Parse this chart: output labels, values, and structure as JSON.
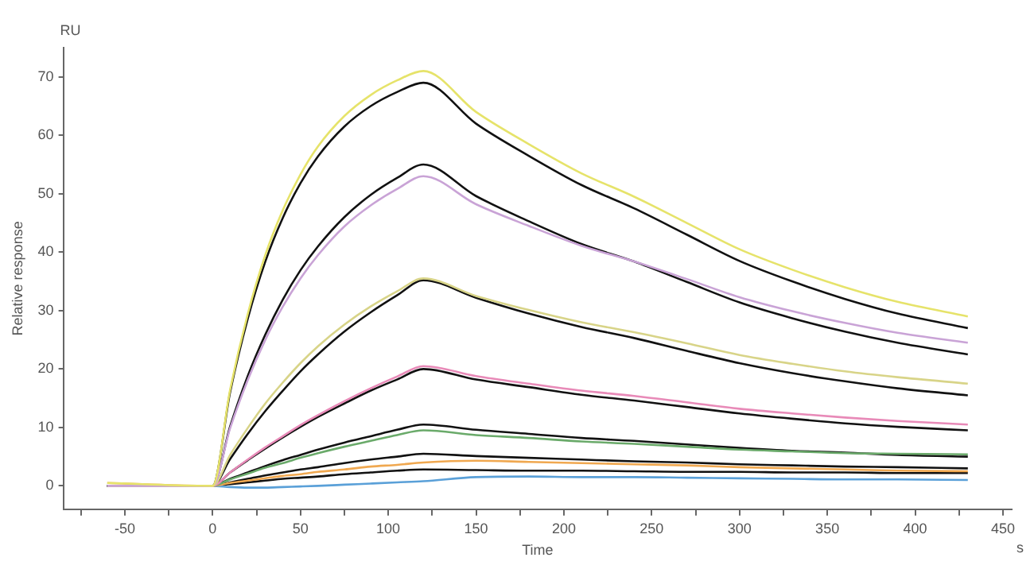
{
  "chart_data": {
    "type": "line",
    "xlabel": "Time",
    "ylabel": "Relative response",
    "annotations": [
      "RU",
      "s"
    ],
    "x": [
      -60,
      0,
      10,
      20,
      30,
      40,
      50,
      60,
      75,
      90,
      105,
      120,
      150,
      180,
      210,
      240,
      270,
      300,
      330,
      360,
      390,
      430
    ],
    "series": [
      {
        "color": "#e6e36a",
        "values": [
          0.5,
          0,
          16.5,
          29.4,
          39.5,
          47.2,
          53.3,
          58.1,
          63.3,
          66.9,
          69.4,
          71,
          64,
          58.5,
          53.5,
          49.5,
          45,
          40.5,
          37,
          34,
          31.5,
          29
        ]
      },
      {
        "color": "#c9a3d6",
        "values": [
          0,
          0,
          9.9,
          18.1,
          25,
          30.7,
          35.5,
          39.5,
          44.4,
          48,
          50.8,
          53,
          48.2,
          44.5,
          41.1,
          38.4,
          35.4,
          32.3,
          29.9,
          27.9,
          26.2,
          24.5
        ]
      },
      {
        "color": "#d8d488",
        "values": [
          0,
          0,
          5.3,
          9.9,
          14.1,
          17.7,
          21,
          23.9,
          27.6,
          30.7,
          33.3,
          35.5,
          32.5,
          30.1,
          28,
          26.3,
          24.4,
          22.4,
          20.9,
          19.6,
          18.6,
          17.5
        ]
      },
      {
        "color": "#e88ab8",
        "values": [
          0,
          0,
          2.3,
          4.5,
          6.6,
          8.5,
          10.4,
          12.1,
          14.5,
          16.7,
          18.7,
          20.5,
          18.8,
          17.5,
          16.3,
          15.4,
          14.3,
          13.2,
          12.4,
          11.7,
          11.1,
          10.5
        ]
      },
      {
        "color": "#6aaa6a",
        "values": [
          0,
          0,
          1.1,
          2.1,
          3.1,
          3.9,
          4.8,
          5.6,
          6.7,
          7.7,
          8.7,
          9.5,
          8.7,
          8.2,
          7.6,
          7.2,
          6.7,
          6.2,
          5.9,
          5.6,
          5.5,
          5.4
        ]
      },
      {
        "color": "#f0a850",
        "values": [
          0.5,
          0,
          0.5,
          0.9,
          1.3,
          1.7,
          2,
          2.4,
          2.8,
          3.3,
          3.6,
          4,
          4.3,
          4.1,
          3.9,
          3.7,
          3.5,
          3.2,
          3,
          2.8,
          2.6,
          2.5
        ]
      },
      {
        "color": "#5aa0d8",
        "values": [
          0,
          0,
          -0.2,
          -0.3,
          -0.3,
          -0.2,
          -0.1,
          0,
          0.2,
          0.4,
          0.6,
          0.8,
          1.5,
          1.6,
          1.5,
          1.5,
          1.4,
          1.3,
          1.2,
          1.1,
          1.1,
          1
        ]
      },
      {
        "color": "#111111",
        "values": [
          0,
          0,
          16.1,
          28.6,
          38.4,
          45.9,
          51.8,
          56.4,
          61.5,
          65,
          67.4,
          69,
          62,
          56.5,
          51.5,
          47.5,
          43,
          38.5,
          35,
          32,
          29.5,
          27
        ]
      },
      {
        "color": "#111111",
        "values": [
          0,
          0,
          10.2,
          18.8,
          25.9,
          31.9,
          36.9,
          41,
          46,
          49.8,
          52.7,
          55,
          49.6,
          45.3,
          41.4,
          38.4,
          34.9,
          31.4,
          28.7,
          26.4,
          24.5,
          22.5
        ]
      },
      {
        "color": "#111111",
        "values": [
          0,
          0,
          4.6,
          8.9,
          12.8,
          16.3,
          19.6,
          22.5,
          26.4,
          29.7,
          32.6,
          35.2,
          32.2,
          29.5,
          27.2,
          25.3,
          23.1,
          21,
          19.3,
          17.9,
          16.7,
          15.5
        ]
      },
      {
        "color": "#111111",
        "values": [
          0,
          0,
          2.3,
          4.4,
          6.4,
          8.3,
          10.1,
          11.8,
          14.1,
          16.3,
          18.2,
          20,
          18.2,
          16.9,
          15.6,
          14.6,
          13.5,
          12.4,
          11.5,
          10.7,
          10.1,
          9.5
        ]
      },
      {
        "color": "#111111",
        "values": [
          0,
          0,
          1.2,
          2.3,
          3.4,
          4.4,
          5.3,
          6.2,
          7.4,
          8.5,
          9.6,
          10.5,
          9.6,
          8.9,
          8.2,
          7.7,
          7.1,
          6.5,
          6,
          5.7,
          5.3,
          5
        ]
      },
      {
        "color": "#111111",
        "values": [
          0,
          0,
          0.6,
          1.2,
          1.8,
          2.3,
          2.8,
          3.2,
          3.9,
          4.5,
          5,
          5.5,
          5.1,
          4.8,
          4.5,
          4.2,
          4,
          3.7,
          3.5,
          3.3,
          3.2,
          3
        ]
      },
      {
        "color": "#111111",
        "values": [
          0,
          0,
          0.3,
          0.6,
          0.9,
          1.2,
          1.4,
          1.6,
          2,
          2.3,
          2.6,
          2.8,
          2.7,
          2.6,
          2.6,
          2.5,
          2.4,
          2.4,
          2.3,
          2.3,
          2.2,
          2.2
        ]
      }
    ],
    "xlim": [
      -85,
      455
    ],
    "xticks": [
      {
        "value": -75,
        "label": null
      },
      -50,
      {
        "value": -25,
        "label": null
      },
      0,
      {
        "value": 25,
        "label": null
      },
      50,
      {
        "value": 75,
        "label": null
      },
      100,
      {
        "value": 125,
        "label": null
      },
      150,
      {
        "value": 175,
        "label": null
      },
      200,
      {
        "value": 225,
        "label": null
      },
      250,
      {
        "value": 275,
        "label": null
      },
      300,
      {
        "value": 325,
        "label": null
      },
      350,
      {
        "value": 375,
        "label": null
      },
      400,
      {
        "value": 425,
        "label": null
      },
      450
    ],
    "ylim": [
      -4,
      75
    ],
    "yticks": [
      0,
      10,
      20,
      30,
      40,
      50,
      60,
      70
    ],
    "grid": false,
    "legend": false,
    "marker": "none",
    "line_style": "solid"
  }
}
